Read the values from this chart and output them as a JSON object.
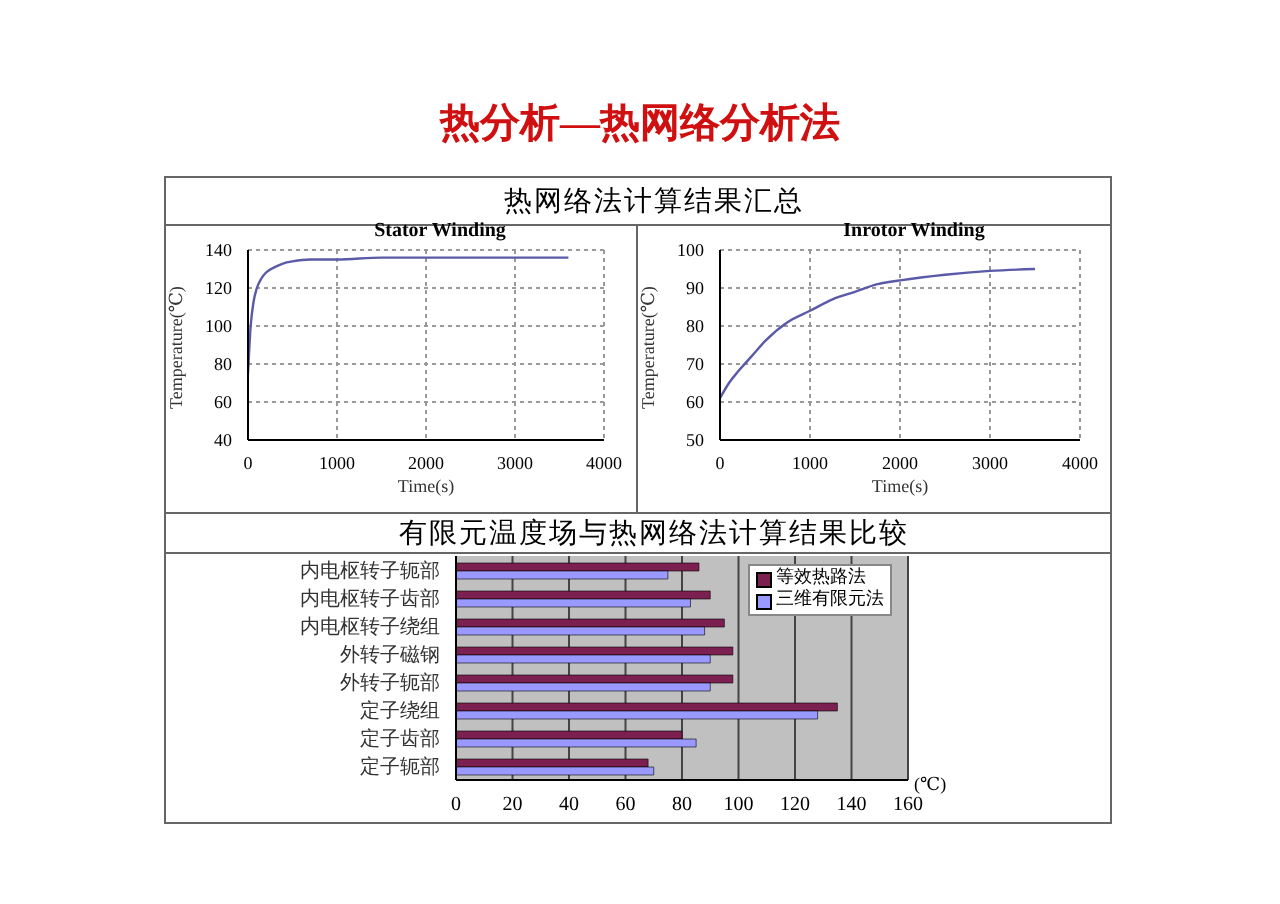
{
  "chart_data": [
    {
      "type": "line",
      "title": "Stator Winding",
      "xlabel": "Time(s)",
      "ylabel": "Temperature(℃)",
      "annotations": [
        "热分析—热网络分析法",
        "热网络法计算结果汇总"
      ],
      "x": [
        0,
        30,
        60,
        100,
        150,
        200,
        300,
        400,
        500,
        700,
        1000,
        1500,
        2000,
        3000,
        3600
      ],
      "series": [
        {
          "color": "#5a5aa8",
          "values": [
            75,
            100,
            112,
            120,
            125,
            128,
            131,
            133,
            134,
            135,
            135,
            136,
            136,
            136,
            136
          ]
        }
      ],
      "xlim": [
        0,
        4000
      ],
      "xticks": [
        0,
        1000,
        2000,
        3000,
        4000
      ],
      "ylim": [
        40,
        140
      ],
      "yticks": [
        40,
        60,
        80,
        100,
        120,
        140
      ],
      "grid": true,
      "marker": "none",
      "line_style": "solid",
      "legend": false
    },
    {
      "type": "line",
      "title": "Inrotor Winding",
      "xlabel": "Time(s)",
      "ylabel": "Temperature(℃)",
      "x": [
        0,
        100,
        200,
        350,
        500,
        750,
        1000,
        1250,
        1500,
        1750,
        2000,
        2500,
        3000,
        3500
      ],
      "series": [
        {
          "color": "#5a5aa8",
          "values": [
            61,
            65,
            68,
            72,
            76,
            81,
            84,
            87,
            89,
            91,
            92,
            93.5,
            94.5,
            95
          ]
        }
      ],
      "xlim": [
        0,
        4000
      ],
      "xticks": [
        0,
        1000,
        2000,
        3000,
        4000
      ],
      "ylim": [
        50,
        100
      ],
      "yticks": [
        50,
        60,
        70,
        80,
        90,
        100
      ],
      "grid": true,
      "marker": "none",
      "line_style": "solid",
      "legend": false
    },
    {
      "type": "bar",
      "orientation": "horizontal",
      "xlabel": "(℃)",
      "annotations": [
        "有限元温度场与热网络法计算结果比较"
      ],
      "categories": [
        "内电枢转子轭部",
        "内电枢转子齿部",
        "内电枢转子绕组",
        "外转子磁钢",
        "外转子轭部",
        "定子绕组",
        "定子齿部",
        "定子轭部"
      ],
      "series": [
        {
          "name": "等效热路法",
          "color": "#7b2050",
          "values": [
            86,
            90,
            95,
            98,
            98,
            135,
            80,
            68
          ]
        },
        {
          "name": "三维有限元法",
          "color": "#9999ff",
          "values": [
            75,
            83,
            88,
            90,
            90,
            128,
            85,
            70
          ]
        }
      ],
      "xlim": [
        0,
        160
      ],
      "xticks": [
        0,
        20,
        40,
        60,
        80,
        100,
        120,
        140,
        160
      ],
      "grid": "x",
      "legend": "top right"
    }
  ]
}
